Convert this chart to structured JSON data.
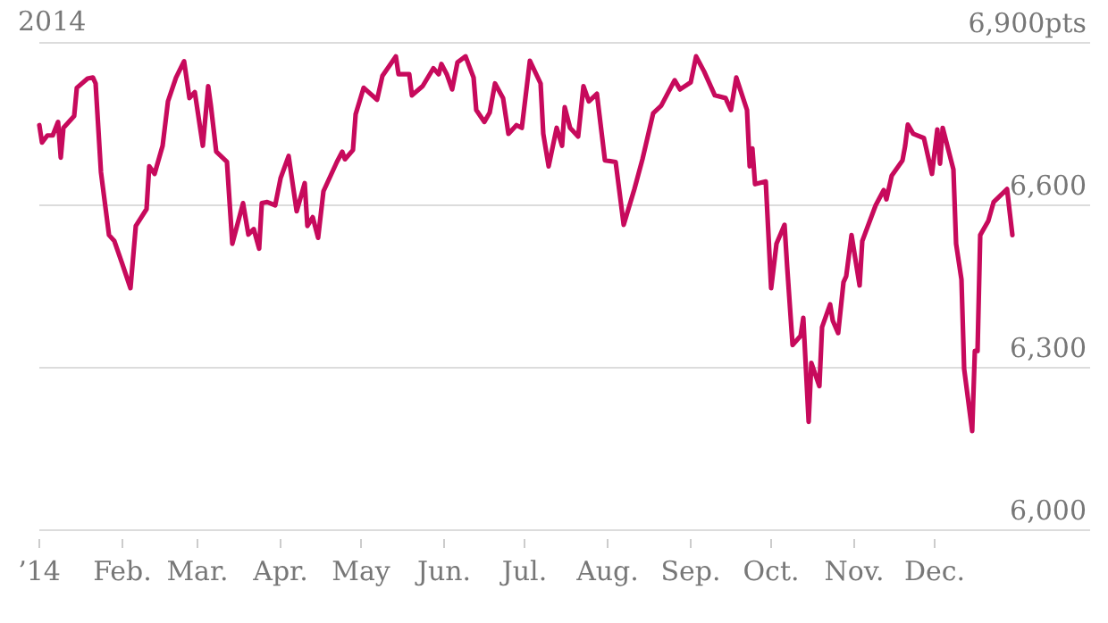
{
  "chart_data": {
    "type": "line",
    "title": "2014",
    "x": [
      "2014-01-01",
      "2014-01-02",
      "2014-01-04",
      "2014-01-06",
      "2014-01-08",
      "2014-01-09",
      "2014-01-10",
      "2014-01-14",
      "2014-01-15",
      "2014-01-19",
      "2014-01-21",
      "2014-01-22",
      "2014-01-24",
      "2014-01-27",
      "2014-01-29",
      "2014-02-01",
      "2014-02-04",
      "2014-02-06",
      "2014-02-10",
      "2014-02-11",
      "2014-02-13",
      "2014-02-16",
      "2014-02-18",
      "2014-02-21",
      "2014-02-24",
      "2014-02-26",
      "2014-02-28",
      "2014-03-03",
      "2014-03-05",
      "2014-03-06",
      "2014-03-08",
      "2014-03-12",
      "2014-03-14",
      "2014-03-18",
      "2014-03-20",
      "2014-03-22",
      "2014-03-24",
      "2014-03-25",
      "2014-03-27",
      "2014-03-30",
      "2014-04-01",
      "2014-04-04",
      "2014-04-07",
      "2014-04-10",
      "2014-04-11",
      "2014-04-13",
      "2014-04-15",
      "2014-04-17",
      "2014-04-22",
      "2014-04-24",
      "2014-04-25",
      "2014-04-28",
      "2014-04-29",
      "2014-05-02",
      "2014-05-07",
      "2014-05-09",
      "2014-05-14",
      "2014-05-15",
      "2014-05-19",
      "2014-05-20",
      "2014-05-24",
      "2014-05-28",
      "2014-05-30",
      "2014-05-31",
      "2014-06-02",
      "2014-06-04",
      "2014-06-06",
      "2014-06-09",
      "2014-06-12",
      "2014-06-13",
      "2014-06-16",
      "2014-06-18",
      "2014-06-20",
      "2014-06-23",
      "2014-06-25",
      "2014-06-28",
      "2014-06-30",
      "2014-07-03",
      "2014-07-07",
      "2014-07-08",
      "2014-07-10",
      "2014-07-13",
      "2014-07-15",
      "2014-07-16",
      "2014-07-18",
      "2014-07-21",
      "2014-07-23",
      "2014-07-25",
      "2014-07-28",
      "2014-07-31",
      "2014-08-04",
      "2014-08-07",
      "2014-08-11",
      "2014-08-14",
      "2014-08-18",
      "2014-08-21",
      "2014-08-26",
      "2014-08-28",
      "2014-09-01",
      "2014-09-03",
      "2014-09-06",
      "2014-09-10",
      "2014-09-14",
      "2014-09-16",
      "2014-09-18",
      "2014-09-22",
      "2014-09-23",
      "2014-09-24",
      "2014-09-25",
      "2014-09-29",
      "2014-10-01",
      "2014-10-03",
      "2014-10-06",
      "2014-10-07",
      "2014-10-09",
      "2014-10-12",
      "2014-10-13",
      "2014-10-15",
      "2014-10-16",
      "2014-10-19",
      "2014-10-20",
      "2014-10-23",
      "2014-10-24",
      "2014-10-26",
      "2014-10-28",
      "2014-10-29",
      "2014-10-31",
      "2014-11-03",
      "2014-11-04",
      "2014-11-09",
      "2014-11-12",
      "2014-11-13",
      "2014-11-15",
      "2014-11-19",
      "2014-11-20",
      "2014-11-21",
      "2014-11-23",
      "2014-11-27",
      "2014-11-30",
      "2014-12-02",
      "2014-12-03",
      "2014-12-04",
      "2014-12-08",
      "2014-12-09",
      "2014-12-11",
      "2014-12-12",
      "2014-12-15",
      "2014-12-16",
      "2014-12-17",
      "2014-12-18",
      "2014-12-21",
      "2014-12-23",
      "2014-12-28",
      "2014-12-30"
    ],
    "series": [
      {
        "color": "#c70a5c",
        "values": [
          6748,
          6716,
          6729,
          6729,
          6754,
          6688,
          6743,
          6765,
          6817,
          6834,
          6836,
          6825,
          6661,
          6545,
          6534,
          6491,
          6447,
          6562,
          6593,
          6672,
          6658,
          6710,
          6792,
          6836,
          6866,
          6798,
          6809,
          6710,
          6820,
          6784,
          6699,
          6680,
          6529,
          6604,
          6546,
          6556,
          6520,
          6604,
          6606,
          6600,
          6650,
          6691,
          6589,
          6641,
          6562,
          6578,
          6540,
          6626,
          6680,
          6699,
          6685,
          6702,
          6768,
          6817,
          6795,
          6839,
          6875,
          6842,
          6842,
          6803,
          6820,
          6853,
          6842,
          6861,
          6842,
          6814,
          6864,
          6875,
          6836,
          6776,
          6754,
          6771,
          6825,
          6798,
          6732,
          6748,
          6743,
          6867,
          6825,
          6732,
          6672,
          6743,
          6710,
          6781,
          6743,
          6727,
          6820,
          6792,
          6806,
          6683,
          6680,
          6564,
          6630,
          6685,
          6770,
          6784,
          6831,
          6814,
          6827,
          6875,
          6847,
          6803,
          6798,
          6776,
          6836,
          6776,
          6672,
          6705,
          6639,
          6644,
          6447,
          6529,
          6564,
          6485,
          6342,
          6359,
          6392,
          6200,
          6309,
          6266,
          6375,
          6417,
          6387,
          6364,
          6458,
          6469,
          6545,
          6452,
          6534,
          6600,
          6628,
          6611,
          6655,
          6683,
          6710,
          6749,
          6732,
          6724,
          6658,
          6740,
          6677,
          6743,
          6666,
          6529,
          6463,
          6298,
          6183,
          6331,
          6331,
          6545,
          6571,
          6606,
          6630,
          6545
        ]
      }
    ],
    "xlim": [
      "2014-01-01",
      "2015-01-28"
    ],
    "xticks": [
      {
        "value": "2014-01-01",
        "label": "’14"
      },
      {
        "value": "2014-02-01",
        "label": "Feb."
      },
      {
        "value": "2014-03-01",
        "label": "Mar."
      },
      {
        "value": "2014-04-01",
        "label": "Apr."
      },
      {
        "value": "2014-05-01",
        "label": "May"
      },
      {
        "value": "2014-06-01",
        "label": "Jun."
      },
      {
        "value": "2014-07-01",
        "label": "Jul."
      },
      {
        "value": "2014-08-01",
        "label": "Aug."
      },
      {
        "value": "2014-09-01",
        "label": "Sep."
      },
      {
        "value": "2014-10-01",
        "label": "Oct."
      },
      {
        "value": "2014-11-01",
        "label": "Nov."
      },
      {
        "value": "2014-12-01",
        "label": "Dec."
      }
    ],
    "ylim": [
      6000,
      6900
    ],
    "yticks": [
      {
        "value": 6000,
        "label": "6,000"
      },
      {
        "value": 6300,
        "label": "6,300"
      },
      {
        "value": 6600,
        "label": "6,600"
      },
      {
        "value": 6900,
        "label": "6,900pts"
      }
    ],
    "grid": "y",
    "marker": "none",
    "line_style": "solid"
  }
}
